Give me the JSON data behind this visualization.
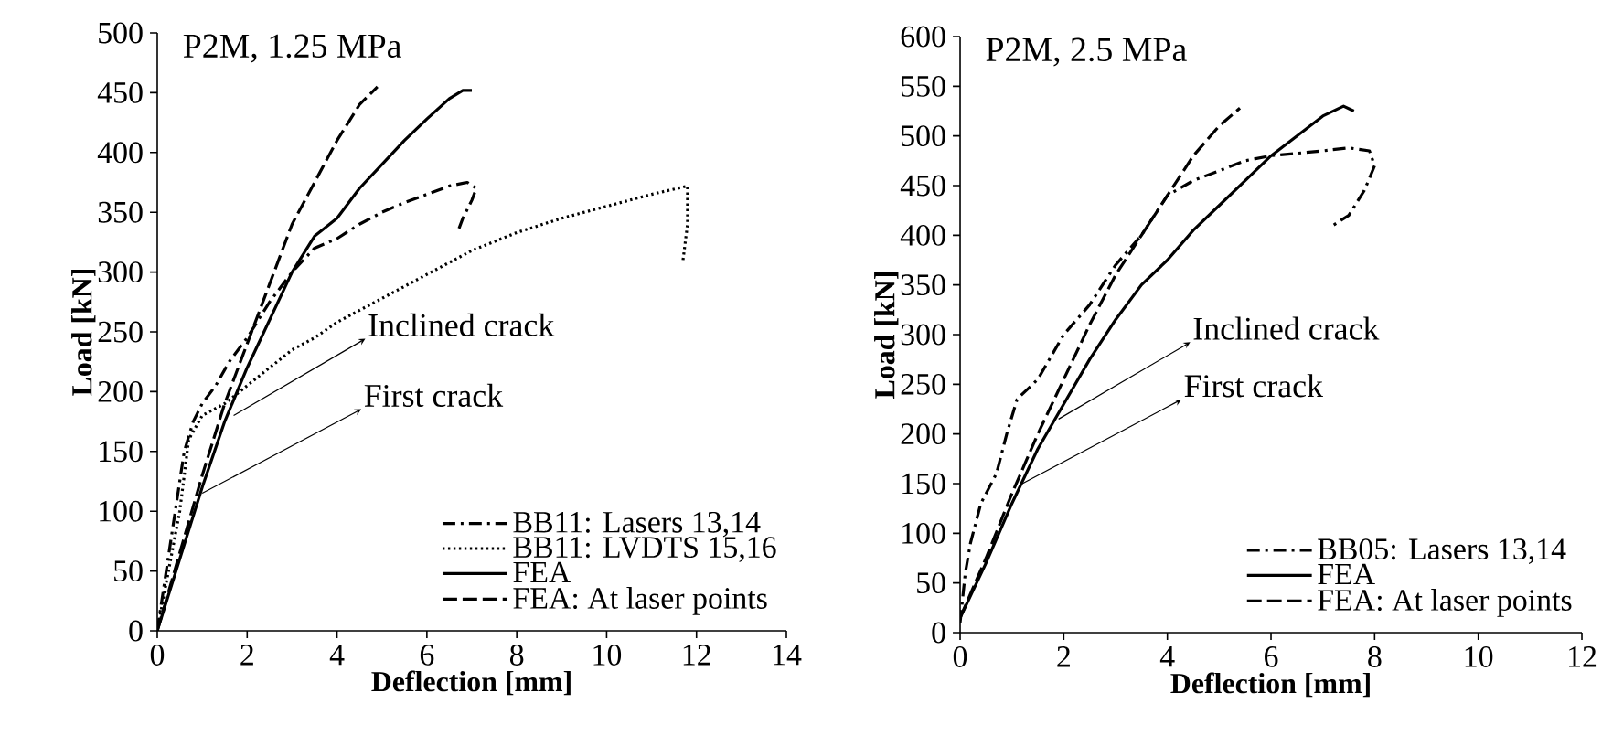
{
  "chart_data": [
    {
      "type": "line",
      "title": "P2M, 1.25 MPa",
      "xlabel": "Deflection [mm]",
      "ylabel": "Load [kN]",
      "xlim": [
        0,
        14
      ],
      "ylim": [
        0,
        500
      ],
      "xticks": [
        0,
        2,
        4,
        6,
        8,
        10,
        12,
        14
      ],
      "yticks": [
        0,
        50,
        100,
        150,
        200,
        250,
        300,
        350,
        400,
        450,
        500
      ],
      "legend": "bottom right",
      "grid": false,
      "annotations": [
        {
          "text": "Inclined crack",
          "x": 1.7,
          "y": 180
        },
        {
          "text": "First crack",
          "x": 1.0,
          "y": 115
        }
      ],
      "series": [
        {
          "name": "BB11: Lasers 13,14",
          "color": "#000000",
          "line_style": "dashdot",
          "x": [
            0,
            0.2,
            0.4,
            0.6,
            0.8,
            1,
            1.3,
            1.6,
            2,
            2.5,
            3,
            3.5,
            4,
            4.5,
            5,
            5.5,
            6,
            6.5,
            6.9,
            7.1,
            7,
            6.8,
            6.7
          ],
          "values": [
            0,
            50,
            100,
            150,
            175,
            190,
            205,
            225,
            245,
            275,
            300,
            320,
            328,
            340,
            350,
            358,
            365,
            372,
            375,
            370,
            360,
            345,
            335
          ]
        },
        {
          "name": "BB11: LVDTS 15,16",
          "color": "#000000",
          "line_style": "dotted",
          "x": [
            0,
            0.3,
            0.5,
            0.7,
            1,
            1.5,
            2,
            2.5,
            3,
            3.5,
            4,
            5,
            6,
            7,
            8,
            9,
            10,
            11,
            11.8,
            11.8,
            11.7
          ],
          "values": [
            0,
            60,
            100,
            160,
            180,
            190,
            205,
            220,
            235,
            245,
            258,
            278,
            298,
            318,
            333,
            345,
            355,
            365,
            372,
            340,
            310
          ]
        },
        {
          "name": "FEA",
          "color": "#000000",
          "line_style": "solid",
          "x": [
            0,
            0.5,
            1,
            1.5,
            2,
            2.5,
            3,
            3.5,
            4,
            4.5,
            5,
            5.5,
            6,
            6.5,
            6.8,
            7
          ],
          "values": [
            0,
            60,
            120,
            175,
            220,
            260,
            300,
            330,
            345,
            370,
            390,
            410,
            428,
            445,
            452,
            452
          ]
        },
        {
          "name": "FEA: At laser points",
          "color": "#000000",
          "line_style": "dashed",
          "x": [
            0,
            0.5,
            1,
            1.5,
            2,
            2.5,
            3,
            3.5,
            4,
            4.5,
            4.9
          ],
          "values": [
            0,
            65,
            130,
            190,
            240,
            290,
            340,
            375,
            410,
            440,
            455
          ]
        }
      ]
    },
    {
      "type": "line",
      "title": "P2M, 2.5 MPa",
      "xlabel": "Deflection [mm]",
      "ylabel": "Load [kN]",
      "xlim": [
        0,
        12
      ],
      "ylim": [
        0,
        600
      ],
      "xticks": [
        0,
        2,
        4,
        6,
        8,
        10,
        12
      ],
      "yticks": [
        0,
        50,
        100,
        150,
        200,
        250,
        300,
        350,
        400,
        450,
        500,
        550,
        600
      ],
      "legend": "bottom right",
      "grid": false,
      "annotations": [
        {
          "text": "Inclined crack",
          "x": 1.9,
          "y": 215
        },
        {
          "text": "First crack",
          "x": 1.2,
          "y": 150
        }
      ],
      "series": [
        {
          "name": "BB05: Lasers 13,14",
          "color": "#000000",
          "line_style": "dashdot",
          "x": [
            0,
            0.1,
            0.2,
            0.4,
            0.7,
            0.9,
            1.1,
            1.5,
            2,
            2.5,
            3,
            3.5,
            4,
            4.5,
            5,
            5.5,
            6,
            7,
            7.5,
            7.9,
            8,
            7.8,
            7.5,
            7.2
          ],
          "values": [
            10,
            60,
            90,
            130,
            160,
            200,
            235,
            255,
            300,
            330,
            370,
            400,
            440,
            455,
            465,
            475,
            480,
            485,
            488,
            485,
            470,
            445,
            420,
            410
          ]
        },
        {
          "name": "FEA",
          "color": "#000000",
          "line_style": "solid",
          "x": [
            0,
            0.5,
            1,
            1.5,
            2,
            2.5,
            3,
            3.5,
            4,
            4.5,
            5,
            5.5,
            6,
            6.5,
            7,
            7.4,
            7.6
          ],
          "values": [
            15,
            70,
            130,
            185,
            230,
            275,
            315,
            350,
            375,
            405,
            430,
            455,
            480,
            500,
            520,
            530,
            525
          ]
        },
        {
          "name": "FEA: At laser points",
          "color": "#000000",
          "line_style": "dashed",
          "x": [
            0,
            0.5,
            1,
            1.5,
            2,
            2.5,
            3,
            3.5,
            4,
            4.5,
            5,
            5.4
          ],
          "values": [
            15,
            75,
            140,
            200,
            255,
            310,
            360,
            400,
            440,
            480,
            510,
            528
          ]
        }
      ]
    }
  ]
}
